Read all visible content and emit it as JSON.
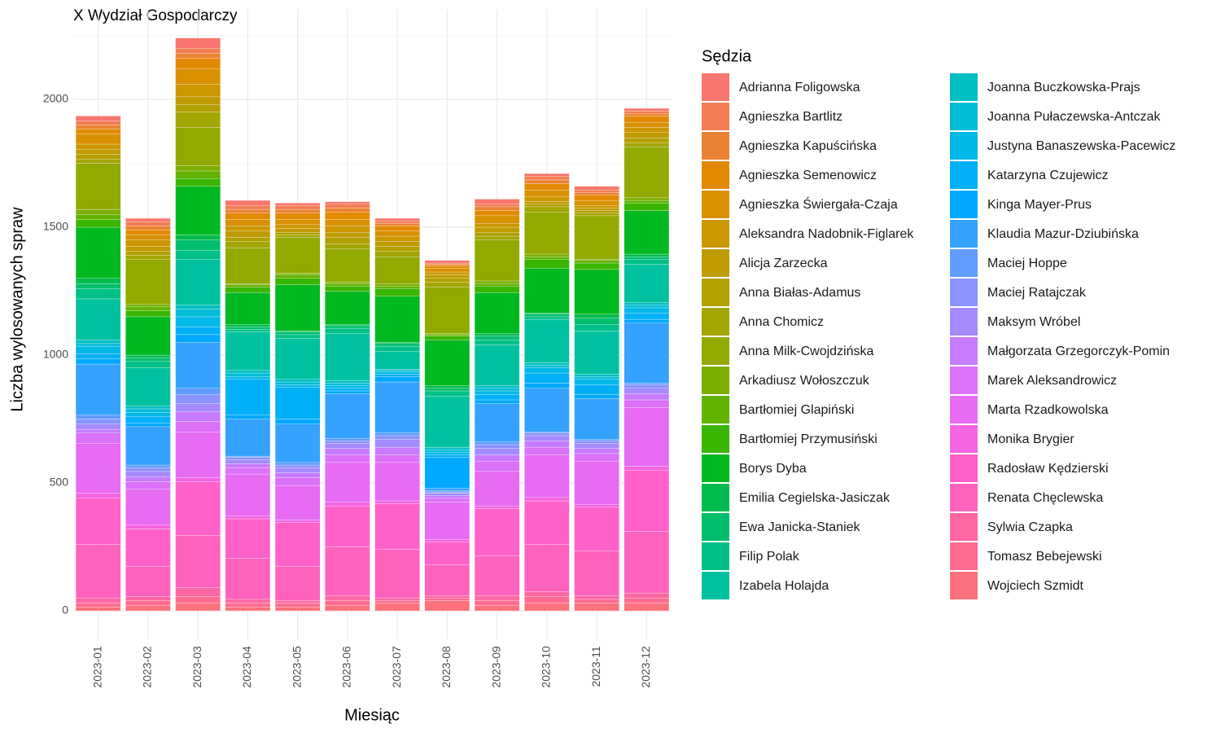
{
  "chart_data": {
    "type": "stacked_bar",
    "title": "X Wydział Gospodarczy",
    "x_label": "Miesiąc",
    "y_label": "Liczba wylosowanych spraw",
    "legend_title": "Sędzia",
    "legend_position": "right",
    "grid": true,
    "categories": [
      "2023-01",
      "2023-02",
      "2023-03",
      "2023-04",
      "2023-05",
      "2023-06",
      "2023-07",
      "2023-08",
      "2023-09",
      "2023-10",
      "2023-11",
      "2023-12"
    ],
    "ylim": [
      -112,
      2352
    ],
    "yticks": [
      0,
      500,
      1000,
      1500,
      2000
    ],
    "series": [
      {
        "name": "Adrianna Foligowska",
        "color": "#F8766D",
        "values": [
          20,
          15,
          40,
          20,
          10,
          10,
          10,
          10,
          20,
          10,
          15,
          10
        ]
      },
      {
        "name": "Agnieszka Bartlitz",
        "color": "#F27D52",
        "values": [
          15,
          15,
          20,
          15,
          15,
          15,
          10,
          5,
          10,
          15,
          10,
          10
        ]
      },
      {
        "name": "Agnieszka Kapuścińska",
        "color": "#EA8331",
        "values": [
          15,
          15,
          20,
          15,
          15,
          15,
          10,
          5,
          15,
          15,
          10,
          10
        ]
      },
      {
        "name": "Agnieszka Semenowicz",
        "color": "#E38900",
        "values": [
          20,
          20,
          40,
          25,
          25,
          30,
          20,
          10,
          20,
          25,
          20,
          25
        ]
      },
      {
        "name": "Agnieszka Świergała-Czaja",
        "color": "#D89000",
        "values": [
          40,
          20,
          60,
          25,
          20,
          25,
          20,
          15,
          30,
          25,
          20,
          20
        ]
      },
      {
        "name": "Aleksandra Nadobnik-Figlarek",
        "color": "#CC9600",
        "values": [
          20,
          25,
          50,
          20,
          15,
          25,
          20,
          10,
          15,
          20,
          10,
          20
        ]
      },
      {
        "name": "Alicja Zarzecka",
        "color": "#C09B00",
        "values": [
          20,
          20,
          30,
          25,
          15,
          20,
          20,
          15,
          20,
          10,
          10,
          20
        ]
      },
      {
        "name": "Anna Białas-Adamus",
        "color": "#B2A000",
        "values": [
          20,
          15,
          30,
          15,
          10,
          25,
          20,
          15,
          15,
          10,
          10,
          20
        ]
      },
      {
        "name": "Anna Chomicz",
        "color": "#A3A500",
        "values": [
          15,
          15,
          60,
          25,
          10,
          20,
          20,
          20,
          15,
          20,
          10,
          15
        ]
      },
      {
        "name": "Anna Milk-Cwojdzińska",
        "color": "#92A900",
        "values": [
          180,
          175,
          150,
          140,
          140,
          130,
          105,
          180,
          160,
          165,
          170,
          200
        ]
      },
      {
        "name": "Arkadiusz Wołoszczuk",
        "color": "#7CAE00",
        "values": [
          20,
          10,
          20,
          5,
          5,
          5,
          10,
          5,
          10,
          10,
          5,
          10
        ]
      },
      {
        "name": "Bartłomiej Glapiński",
        "color": "#62B200",
        "values": [
          20,
          15,
          30,
          10,
          15,
          10,
          10,
          5,
          10,
          10,
          10,
          10
        ]
      },
      {
        "name": "Bartłomiej Przymusiński",
        "color": "#39B600",
        "values": [
          30,
          25,
          30,
          20,
          25,
          20,
          30,
          15,
          25,
          35,
          25,
          30
        ]
      },
      {
        "name": "Borys Dyba",
        "color": "#00B81F",
        "values": [
          200,
          150,
          190,
          125,
          180,
          130,
          180,
          180,
          160,
          175,
          175,
          170
        ]
      },
      {
        "name": "Emilia Cegielska-Jasiczak",
        "color": "#00BB4E",
        "values": [
          20,
          10,
          20,
          10,
          5,
          5,
          5,
          10,
          10,
          5,
          15,
          10
        ]
      },
      {
        "name": "Ewa Janicka-Staniek",
        "color": "#00BE6C",
        "values": [
          20,
          15,
          40,
          10,
          10,
          10,
          10,
          10,
          15,
          10,
          25,
          10
        ]
      },
      {
        "name": "Filip Polak",
        "color": "#00C087",
        "values": [
          40,
          25,
          35,
          10,
          15,
          20,
          20,
          20,
          20,
          10,
          25,
          20
        ]
      },
      {
        "name": "Izabela Holajda",
        "color": "#00C19F",
        "values": [
          160,
          150,
          180,
          150,
          160,
          185,
          70,
          200,
          160,
          170,
          170,
          150
        ]
      },
      {
        "name": "Joanna Buczkowska-Prajs",
        "color": "#00BFC4",
        "values": [
          15,
          10,
          15,
          10,
          10,
          10,
          5,
          10,
          10,
          10,
          10,
          10
        ]
      },
      {
        "name": "Joanna Pułaczewska-Antczak",
        "color": "#00BCD6",
        "values": [
          10,
          15,
          30,
          15,
          10,
          10,
          5,
          10,
          10,
          10,
          10,
          10
        ]
      },
      {
        "name": "Justyna Banaszewska-Pacewicz",
        "color": "#00B8E7",
        "values": [
          30,
          15,
          40,
          10,
          10,
          10,
          10,
          10,
          15,
          20,
          20,
          20
        ]
      },
      {
        "name": "Katarzyna Czujewicz",
        "color": "#00B0F6",
        "values": [
          20,
          25,
          30,
          140,
          125,
          10,
          10,
          10,
          20,
          40,
          40,
          25
        ]
      },
      {
        "name": "Kinga Mayer-Prus",
        "color": "#00A9FF",
        "values": [
          20,
          15,
          30,
          15,
          20,
          10,
          20,
          120,
          15,
          20,
          15,
          15
        ]
      },
      {
        "name": "Klaudia Mazur-Dziubińska",
        "color": "#35A2FF",
        "values": [
          200,
          150,
          180,
          145,
          150,
          175,
          200,
          10,
          150,
          170,
          160,
          235
        ]
      },
      {
        "name": "Maciej Hoppe",
        "color": "#619CFF",
        "values": [
          15,
          10,
          25,
          5,
          10,
          10,
          10,
          5,
          10,
          5,
          5,
          5
        ]
      },
      {
        "name": "Maciej Ratajczak",
        "color": "#8B93FF",
        "values": [
          20,
          15,
          35,
          10,
          10,
          10,
          15,
          5,
          15,
          10,
          10,
          15
        ]
      },
      {
        "name": "Maksym Wróbel",
        "color": "#A58AFF",
        "values": [
          20,
          20,
          30,
          15,
          20,
          20,
          30,
          10,
          25,
          20,
          20,
          20
        ]
      },
      {
        "name": "Małgorzata Grzegorczyk-Pomin",
        "color": "#C77CFF",
        "values": [
          15,
          20,
          40,
          15,
          20,
          25,
          30,
          10,
          25,
          25,
          20,
          25
        ]
      },
      {
        "name": "Marek Aleksandrowicz",
        "color": "#DC71FA",
        "values": [
          40,
          30,
          40,
          25,
          30,
          30,
          30,
          15,
          40,
          30,
          30,
          30
        ]
      },
      {
        "name": "Marta Rzadkowolska",
        "color": "#E76BF3",
        "values": [
          195,
          140,
          180,
          165,
          135,
          155,
          150,
          145,
          135,
          165,
          170,
          230
        ]
      },
      {
        "name": "Monika Brygier",
        "color": "#F564E3",
        "values": [
          20,
          15,
          15,
          10,
          10,
          15,
          10,
          10,
          10,
          15,
          10,
          15
        ]
      },
      {
        "name": "Radosław Kędzierski",
        "color": "#FF61C9",
        "values": [
          180,
          145,
          210,
          155,
          170,
          160,
          180,
          90,
          185,
          170,
          170,
          240
        ]
      },
      {
        "name": "Renata Chęclewska",
        "color": "#FF62BC",
        "values": [
          210,
          120,
          205,
          160,
          135,
          190,
          190,
          120,
          155,
          185,
          175,
          240
        ]
      },
      {
        "name": "Sylwia Czapka",
        "color": "#FF67A4",
        "values": [
          20,
          15,
          35,
          15,
          10,
          20,
          10,
          10,
          20,
          20,
          15,
          20
        ]
      },
      {
        "name": "Tomasz Bebejewski",
        "color": "#FF6C91",
        "values": [
          15,
          20,
          25,
          15,
          15,
          20,
          10,
          10,
          20,
          25,
          15,
          20
        ]
      },
      {
        "name": "Wojciech Szmidt",
        "color": "#FB727C",
        "values": [
          15,
          20,
          30,
          15,
          15,
          20,
          30,
          40,
          20,
          30,
          30,
          30
        ]
      }
    ]
  }
}
